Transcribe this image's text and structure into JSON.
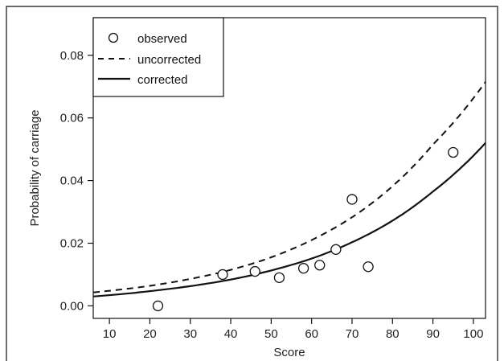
{
  "chart_data": {
    "type": "scatter",
    "title": "",
    "xlabel": "Score",
    "ylabel": "Probability of carriage",
    "xlim": [
      6,
      103
    ],
    "ylim": [
      -0.004,
      0.092
    ],
    "x_ticks": [
      10,
      20,
      30,
      40,
      50,
      60,
      70,
      80,
      90,
      100
    ],
    "x_tick_labels": [
      "10",
      "20",
      "30",
      "40",
      "50",
      "60",
      "70",
      "80",
      "90",
      "100"
    ],
    "y_ticks": [
      0.0,
      0.02,
      0.04,
      0.06,
      0.08
    ],
    "y_tick_labels": [
      "0.00",
      "0.02",
      "0.04",
      "0.06",
      "0.08"
    ],
    "grid": false,
    "legend_position": "top-left",
    "series": [
      {
        "name": "observed",
        "style": "open-circle",
        "x": [
          22,
          38,
          46,
          52,
          58,
          62,
          66,
          70,
          74,
          95
        ],
        "y": [
          0.0,
          0.01,
          0.011,
          0.009,
          0.012,
          0.013,
          0.018,
          0.034,
          0.0125,
          0.049
        ]
      },
      {
        "name": "uncorrected",
        "style": "dashed",
        "x": [
          6,
          20,
          30,
          40,
          50,
          60,
          70,
          80,
          90,
          103
        ],
        "y": [
          0.0043,
          0.0064,
          0.0086,
          0.0115,
          0.0155,
          0.021,
          0.0283,
          0.0382,
          0.0515,
          0.0715
        ]
      },
      {
        "name": "corrected",
        "style": "solid",
        "x": [
          6,
          20,
          30,
          40,
          50,
          60,
          70,
          80,
          90,
          103
        ],
        "y": [
          0.003,
          0.0047,
          0.0063,
          0.0084,
          0.0113,
          0.0151,
          0.0203,
          0.0272,
          0.0365,
          0.052
        ]
      }
    ]
  }
}
